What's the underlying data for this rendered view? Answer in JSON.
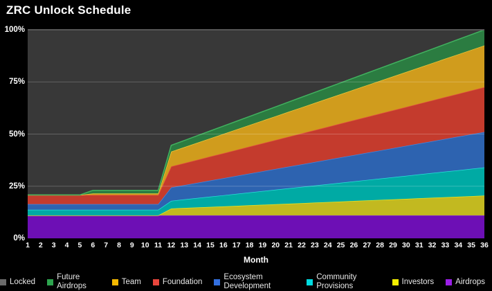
{
  "page": {
    "background": "#000000"
  },
  "header": {
    "title": "ZRC Unlock Schedule"
  },
  "chart_data": {
    "type": "area",
    "stacked": true,
    "percent_scale": true,
    "title": "ZRC Unlock Schedule",
    "xlabel": "Month",
    "ylabel": "",
    "xlim": [
      1,
      36
    ],
    "ylim": [
      0,
      100
    ],
    "grid": "horizontal",
    "legend_position": "bottom",
    "plot_background": "#383838",
    "gridline_color": "rgba(255,255,255,0.22)",
    "top_border_color": "#565656",
    "x": [
      1,
      2,
      3,
      4,
      5,
      6,
      7,
      8,
      9,
      10,
      11,
      12,
      13,
      14,
      15,
      16,
      17,
      18,
      19,
      20,
      21,
      22,
      23,
      24,
      25,
      26,
      27,
      28,
      29,
      30,
      31,
      32,
      33,
      34,
      35,
      36
    ],
    "y_ticks": [
      {
        "value": 0,
        "label": "0%"
      },
      {
        "value": 25,
        "label": "25%"
      },
      {
        "value": 50,
        "label": "50%"
      },
      {
        "value": 75,
        "label": "75%"
      },
      {
        "value": 100,
        "label": "100%"
      }
    ],
    "stack_note": "series listed bottom-to-top; Locked fills the remainder up to 100%",
    "series": [
      {
        "name": "Airdrops",
        "fill": "#6d0fb5",
        "edge": "#8224d8",
        "values": [
          11,
          11,
          11,
          11,
          11,
          11,
          11,
          11,
          11,
          11,
          11,
          11,
          11,
          11,
          11,
          11,
          11,
          11,
          11,
          11,
          11,
          11,
          11,
          11,
          11,
          11,
          11,
          11,
          11,
          11,
          11,
          11,
          11,
          11,
          11,
          11
        ]
      },
      {
        "name": "Investors",
        "fill": "#c2b920",
        "edge": "#e8e426",
        "values": [
          0,
          0,
          0,
          0,
          0,
          0,
          0,
          0,
          0,
          0,
          0,
          3.3,
          3.56,
          3.82,
          4.08,
          4.33,
          4.59,
          4.85,
          5.11,
          5.37,
          5.63,
          5.88,
          6.14,
          6.4,
          6.66,
          6.92,
          7.18,
          7.43,
          7.69,
          7.95,
          8.21,
          8.47,
          8.73,
          8.98,
          9.24,
          9.5
        ]
      },
      {
        "name": "Community Provisions",
        "fill": "#00aaa4",
        "edge": "#2adfd8",
        "values": [
          2.7,
          2.7,
          2.7,
          2.7,
          2.7,
          2.7,
          2.7,
          2.7,
          2.7,
          2.7,
          2.7,
          3.7,
          4.11,
          4.52,
          4.93,
          5.33,
          5.74,
          6.15,
          6.56,
          6.97,
          7.38,
          7.78,
          8.19,
          8.6,
          9.01,
          9.42,
          9.83,
          10.23,
          10.64,
          11.05,
          11.46,
          11.87,
          12.28,
          12.68,
          13.09,
          13.5
        ]
      },
      {
        "name": "Ecosystem Development",
        "fill": "#2d63b0",
        "edge": "#4585de",
        "values": [
          2.7,
          2.7,
          2.7,
          2.7,
          2.7,
          2.7,
          2.7,
          2.7,
          2.7,
          2.7,
          2.7,
          6.4,
          6.84,
          7.28,
          7.73,
          8.17,
          8.61,
          9.05,
          9.49,
          9.93,
          10.38,
          10.82,
          11.26,
          11.7,
          12.14,
          12.58,
          13.03,
          13.47,
          13.91,
          14.35,
          14.79,
          15.23,
          15.68,
          16.12,
          16.56,
          17
        ]
      },
      {
        "name": "Foundation",
        "fill": "#c43b2d",
        "edge": "#e2543e",
        "values": [
          4.4,
          4.4,
          4.4,
          4.4,
          4.4,
          4.4,
          4.4,
          4.4,
          4.4,
          4.4,
          4.4,
          10.1,
          10.58,
          11.05,
          11.53,
          12,
          12.48,
          12.95,
          13.43,
          13.9,
          14.38,
          14.85,
          15.33,
          15.8,
          16.28,
          16.75,
          17.23,
          17.7,
          18.18,
          18.65,
          19.13,
          19.6,
          20.08,
          20.55,
          21.03,
          21.5
        ]
      },
      {
        "name": "Team",
        "fill": "#d09c1d",
        "edge": "#eec93a",
        "values": [
          0,
          0,
          0,
          0,
          0,
          0.7,
          0.7,
          0.7,
          0.7,
          0.7,
          0.7,
          7.1,
          7.64,
          8.18,
          8.71,
          9.25,
          9.79,
          10.33,
          10.86,
          11.4,
          11.94,
          12.48,
          13.01,
          13.55,
          14.09,
          14.63,
          15.16,
          15.7,
          16.24,
          16.78,
          17.31,
          17.85,
          18.39,
          18.93,
          19.46,
          20
        ]
      },
      {
        "name": "Future Airdrops",
        "fill": "#2b7c41",
        "edge": "#41b15f",
        "values": [
          0,
          0,
          0,
          0,
          0,
          1.5,
          1.5,
          1.5,
          1.5,
          1.5,
          1.5,
          3,
          3.19,
          3.38,
          3.56,
          3.75,
          3.94,
          4.13,
          4.31,
          4.5,
          4.69,
          4.88,
          5.06,
          5.25,
          5.44,
          5.63,
          5.81,
          6,
          6.19,
          6.38,
          6.56,
          6.75,
          6.94,
          7.13,
          7.31,
          7.5
        ]
      },
      {
        "name": "Locked",
        "fill": "#383838",
        "remainder": true,
        "values": [
          79.2,
          79.2,
          79.2,
          79.2,
          79.2,
          77,
          77,
          77,
          77,
          77,
          77,
          55.4,
          53.08,
          50.77,
          48.46,
          46.17,
          43.85,
          41.54,
          39.24,
          36.93,
          34.6,
          32.31,
          30.01,
          27.7,
          25.38,
          23.07,
          20.76,
          18.47,
          16.15,
          13.84,
          11.54,
          9.23,
          6.9,
          4.61,
          2.31,
          0
        ]
      }
    ]
  },
  "legend": {
    "items": [
      {
        "label": "Locked",
        "color": "#6b6b6b"
      },
      {
        "label": "Future Airdrops",
        "color": "#2da44e"
      },
      {
        "label": "Team",
        "color": "#f5b800"
      },
      {
        "label": "Foundation",
        "color": "#e8453c"
      },
      {
        "label": "Ecosystem Development",
        "color": "#3370e0"
      },
      {
        "label": "Community Provisions",
        "color": "#00dbe0"
      },
      {
        "label": "Investors",
        "color": "#f5ef00"
      },
      {
        "label": "Airdrops",
        "color": "#9b1fe8"
      }
    ]
  }
}
